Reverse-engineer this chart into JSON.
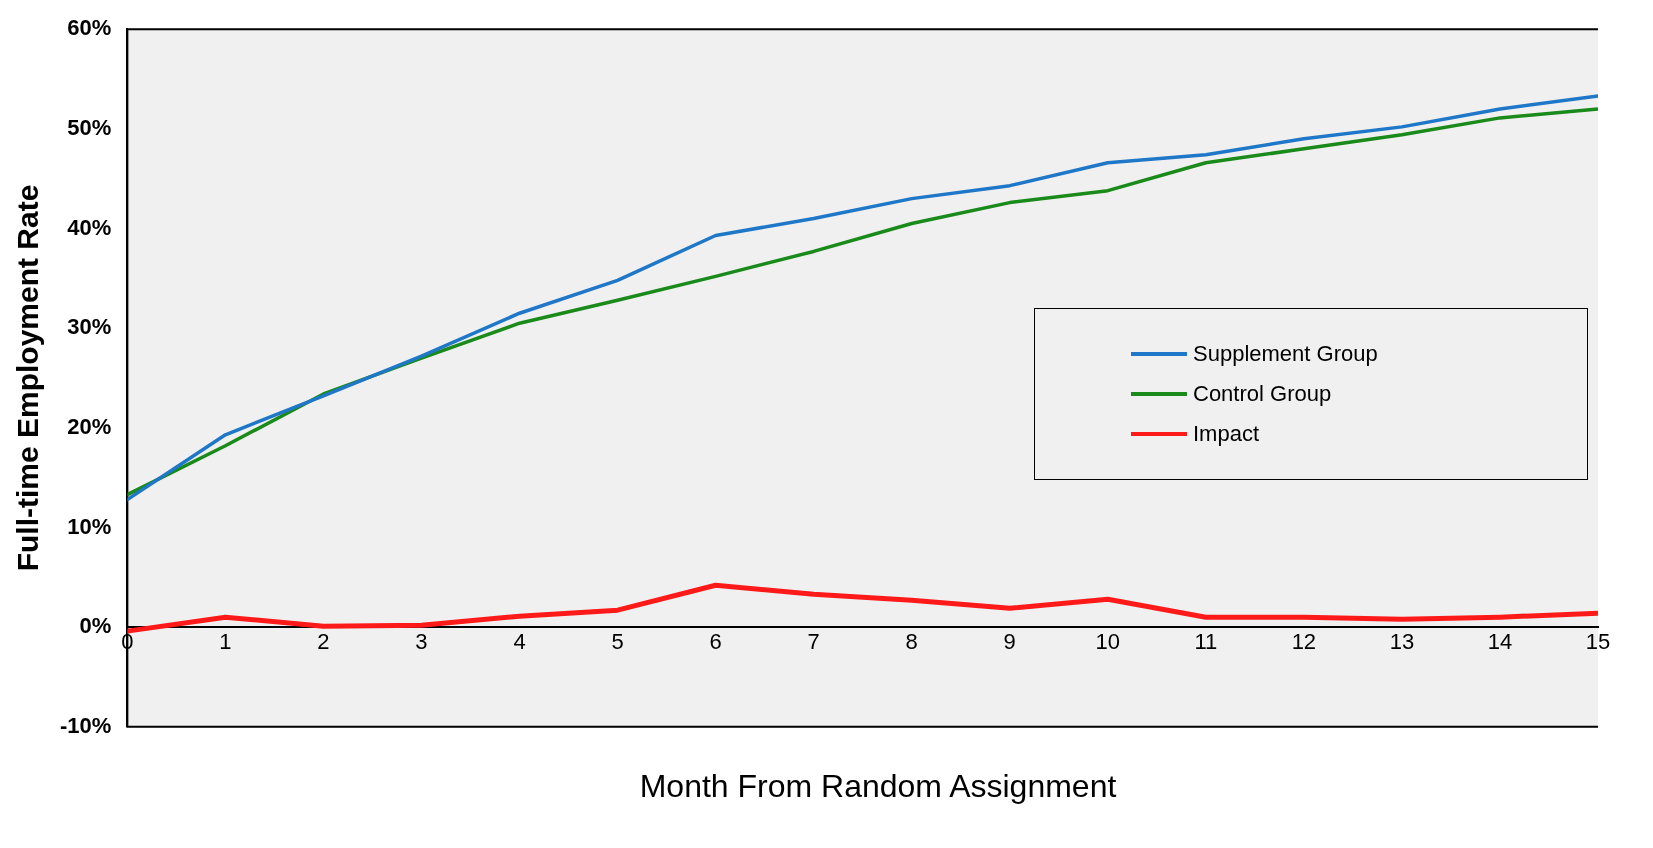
{
  "chart_data": {
    "type": "line",
    "xlabel": "Month From Random Assignment",
    "ylabel": "Full-time Employment Rate",
    "x": [
      0,
      1,
      2,
      3,
      4,
      5,
      6,
      7,
      8,
      9,
      10,
      11,
      12,
      13,
      14,
      15
    ],
    "series": [
      {
        "name": "Supplement Group",
        "color": "#1f77c8",
        "values": [
          12.8,
          19.3,
          23.2,
          27.2,
          31.5,
          34.8,
          39.3,
          41.0,
          43.0,
          44.3,
          46.6,
          47.4,
          49.0,
          50.2,
          52.0,
          53.3
        ]
      },
      {
        "name": "Control Group",
        "color": "#1a8a1a",
        "values": [
          13.3,
          18.2,
          23.4,
          27.0,
          30.5,
          32.8,
          35.2,
          37.7,
          40.5,
          42.6,
          43.8,
          46.6,
          48.0,
          49.4,
          51.1,
          52.0
        ]
      },
      {
        "name": "Impact",
        "color": "#ff1a1a",
        "values": [
          -0.4,
          1.0,
          0.1,
          0.2,
          1.1,
          1.7,
          4.2,
          3.3,
          2.7,
          1.9,
          2.8,
          1.0,
          1.0,
          0.8,
          1.0,
          1.4
        ]
      }
    ],
    "xlim": [
      0,
      15
    ],
    "xticks": [
      0,
      1,
      2,
      3,
      4,
      5,
      6,
      7,
      8,
      9,
      10,
      11,
      12,
      13,
      14,
      15
    ],
    "ylim": [
      -10,
      60
    ],
    "yticks": [
      {
        "value": -10,
        "label": "-10%"
      },
      {
        "value": 0,
        "label": "0%"
      },
      {
        "value": 10,
        "label": "10%"
      },
      {
        "value": 20,
        "label": "20%"
      },
      {
        "value": 30,
        "label": "30%"
      },
      {
        "value": 40,
        "label": "40%"
      },
      {
        "value": 50,
        "label": "50%"
      },
      {
        "value": 60,
        "label": "60%"
      }
    ],
    "grid": false,
    "legend": "right",
    "marker": "none",
    "line_style": "solid"
  }
}
